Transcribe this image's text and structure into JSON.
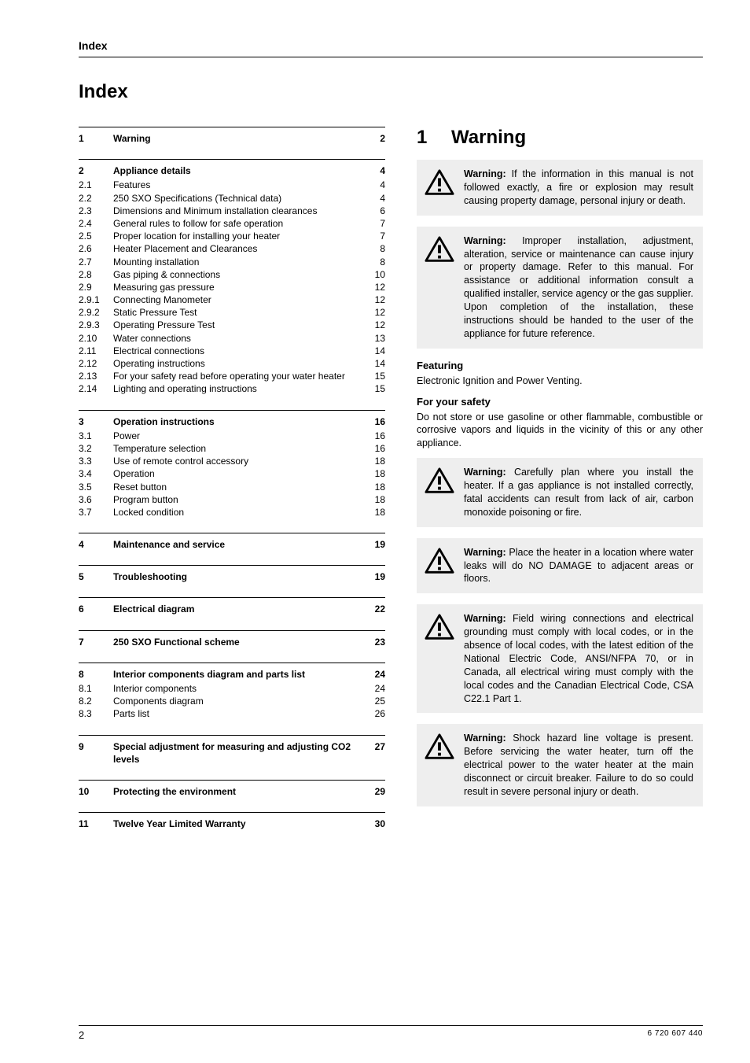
{
  "header": {
    "section": "Index"
  },
  "title": "Index",
  "toc": [
    {
      "head": {
        "num": "1",
        "label": "Warning",
        "page": "2"
      },
      "rows": []
    },
    {
      "head": {
        "num": "2",
        "label": "Appliance details",
        "page": "4"
      },
      "rows": [
        {
          "num": "2.1",
          "label": "Features",
          "page": "4"
        },
        {
          "num": "2.2",
          "label": "250 SXO Specifications (Technical data)",
          "page": "4"
        },
        {
          "num": "2.3",
          "label": "Dimensions and Minimum installation clearances",
          "page": "6"
        },
        {
          "num": "2.4",
          "label": "General rules to follow for safe operation",
          "page": "7"
        },
        {
          "num": "2.5",
          "label": "Proper location for installing your heater",
          "page": "7"
        },
        {
          "num": "2.6",
          "label": "Heater Placement and Clearances",
          "page": "8"
        },
        {
          "num": "2.7",
          "label": "Mounting installation",
          "page": "8"
        },
        {
          "num": "2.8",
          "label": "Gas piping & connections",
          "page": "10"
        },
        {
          "num": "2.9",
          "label": "Measuring gas pressure",
          "page": "12"
        },
        {
          "num": "2.9.1",
          "label": "Connecting Manometer",
          "page": "12"
        },
        {
          "num": "2.9.2",
          "label": "Static Pressure Test",
          "page": "12"
        },
        {
          "num": "2.9.3",
          "label": "Operating Pressure Test",
          "page": "12"
        },
        {
          "num": "2.10",
          "label": "Water connections",
          "page": "13"
        },
        {
          "num": "2.11",
          "label": "Electrical connections",
          "page": "14"
        },
        {
          "num": "2.12",
          "label": "Operating instructions",
          "page": "14"
        },
        {
          "num": "2.13",
          "label": "For your safety read before operating your water heater",
          "page": "15"
        },
        {
          "num": "2.14",
          "label": "Lighting and operating instructions",
          "page": "15"
        }
      ]
    },
    {
      "head": {
        "num": "3",
        "label": "Operation instructions",
        "page": "16"
      },
      "rows": [
        {
          "num": "3.1",
          "label": "Power",
          "page": "16"
        },
        {
          "num": "3.2",
          "label": "Temperature selection",
          "page": "16"
        },
        {
          "num": "3.3",
          "label": "Use of remote control accessory",
          "page": "18"
        },
        {
          "num": "3.4",
          "label": "Operation",
          "page": "18"
        },
        {
          "num": "3.5",
          "label": "Reset button",
          "page": "18"
        },
        {
          "num": "3.6",
          "label": "Program button",
          "page": "18"
        },
        {
          "num": "3.7",
          "label": "Locked condition",
          "page": "18"
        }
      ]
    },
    {
      "head": {
        "num": "4",
        "label": "Maintenance and service",
        "page": "19"
      },
      "rows": []
    },
    {
      "head": {
        "num": "5",
        "label": "Troubleshooting",
        "page": "19"
      },
      "rows": []
    },
    {
      "head": {
        "num": "6",
        "label": "Electrical diagram",
        "page": "22"
      },
      "rows": []
    },
    {
      "head": {
        "num": "7",
        "label": "250 SXO Functional scheme",
        "page": "23"
      },
      "rows": []
    },
    {
      "head": {
        "num": "8",
        "label": "Interior components diagram and parts list",
        "page": "24"
      },
      "rows": [
        {
          "num": "8.1",
          "label": "Interior components",
          "page": "24"
        },
        {
          "num": "8.2",
          "label": "Components diagram",
          "page": "25"
        },
        {
          "num": "8.3",
          "label": "Parts list",
          "page": "26"
        }
      ]
    },
    {
      "head": {
        "num": "9",
        "label": "Special adjustment for measuring and adjusting CO2 levels",
        "page": "27"
      },
      "rows": []
    },
    {
      "head": {
        "num": "10",
        "label": "Protecting the environment",
        "page": "29"
      },
      "rows": []
    },
    {
      "head": {
        "num": "11",
        "label": "Twelve Year Limited Warranty",
        "page": "30"
      },
      "rows": []
    }
  ],
  "right": {
    "h1": {
      "num": "1",
      "text": "Warning"
    },
    "warnings": [
      {
        "lead": "Warning:",
        "body": " If the information in this manual is not followed exactly, a fire or explosion may result causing property damage, personal injury or death."
      },
      {
        "lead": "Warning:",
        "body": " Improper installation, adjustment, alteration, service or maintenance can cause injury or property damage. Refer to this manual. For assistance or additional information consult a qualified installer, service agency or the gas supplier.\nUpon completion of the installation, these instructions should be handed to the user of the appliance for future reference."
      }
    ],
    "featuring": {
      "head": "Featuring",
      "text": "Electronic Ignition and Power Venting."
    },
    "safety": {
      "head": "For your safety",
      "text": "Do not store or use gasoline or other flammable, combustible or corrosive vapors and liquids in the vicinity of this or any other appliance."
    },
    "warnings2": [
      {
        "lead": "Warning:",
        "body": " Carefully plan where you install the heater. If a gas appliance is not installed correctly, fatal accidents can result from lack of air, carbon monoxide poisoning or fire."
      },
      {
        "lead": "Warning:",
        "body": " Place the heater in a location where water leaks will do NO DAMAGE to adjacent areas or floors."
      },
      {
        "lead": "Warning:",
        "body": " Field wiring connections and electrical grounding must comply with local codes, or in the absence of local codes, with the latest edition of the National Electric Code, ANSI/NFPA 70, or in Canada, all electrical wiring must comply with the local codes and the Canadian Electrical Code, CSA C22.1 Part 1."
      },
      {
        "lead": "Warning:",
        "body": " Shock hazard line voltage is present. Before servicing the water heater, turn off the electrical power to the water heater at the main disconnect or circuit breaker. Failure to do so could result in severe personal injury or death."
      }
    ]
  },
  "footer": {
    "page": "2",
    "doc": "6 720 607 440"
  },
  "style": {
    "bg": "#ffffff",
    "text": "#000000",
    "gray": "#eeeeee",
    "font_body": 12.5,
    "font_title": 24,
    "font_header": 14,
    "font_footer_page": 13,
    "font_footer_doc": 10
  }
}
